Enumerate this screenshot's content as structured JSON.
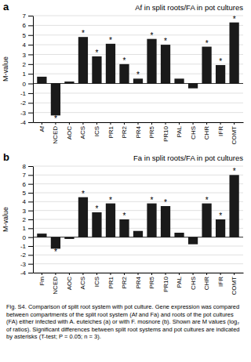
{
  "chart_data": [
    {
      "type": "bar",
      "title": "Af in split roots/FA in pot cultures",
      "panel_label": "a",
      "categories": [
        "Af",
        "NCED",
        "AOC",
        "ACS",
        "ICS",
        "PR1",
        "PR2",
        "PR4",
        "PR5",
        "PR10",
        "PAL",
        "CHS",
        "CHR",
        "IFR",
        "COMT"
      ],
      "values": [
        0.7,
        -3.3,
        0.2,
        4.8,
        2.8,
        4.1,
        2.0,
        0.5,
        4.6,
        4.0,
        0.5,
        -0.5,
        3.8,
        1.9,
        6.3
      ],
      "asterisks": [
        null,
        "*",
        null,
        "*",
        "*",
        "*",
        "*",
        "*",
        "*",
        "*",
        null,
        null,
        "*",
        "*",
        "*"
      ],
      "color": "#1a1a1a",
      "ylabel": "M-value",
      "ylim": [
        -4,
        7
      ],
      "yticks": [
        -4,
        -3,
        -2,
        -1,
        0,
        1,
        2,
        3,
        4,
        5,
        6,
        7
      ],
      "grid": true
    },
    {
      "type": "bar",
      "title": "Fa in split roots/FA in pot cultures",
      "panel_label": "b",
      "categories": [
        "Fm",
        "NCED",
        "AOC",
        "ACS",
        "ICS",
        "PR1",
        "PR2",
        "PR4",
        "PR5",
        "PR10",
        "PAL",
        "CHS",
        "CHR",
        "IFR",
        "COMT"
      ],
      "values": [
        0.4,
        -1.3,
        -0.2,
        4.5,
        2.8,
        3.8,
        2.0,
        0.7,
        3.8,
        3.5,
        0.5,
        -0.8,
        3.8,
        2.0,
        7.0
      ],
      "asterisks": [
        null,
        "*",
        null,
        "*",
        "*",
        "*",
        "*",
        null,
        "*",
        "*",
        null,
        null,
        "*",
        "*",
        "*"
      ],
      "color": "#1a1a1a",
      "ylabel": "M-value",
      "ylim": [
        -4,
        8
      ],
      "yticks": [
        -4,
        -3,
        -2,
        -1,
        0,
        1,
        2,
        3,
        4,
        5,
        6,
        7,
        8
      ],
      "grid": true
    }
  ],
  "caption": "Fig. S4. Comparison of split root system with pot culture. Gene expression was compared between compartments of the split root system (Af and Fa) and roots of the pot cultures (FA) either infected with A. euteiches (a) or with F. mosnore (b). Shown are M values (log₂ of ratios). Significant differences between split root systems and pot cultures are indicated by asterisks (T-test; P = 0.05; n = 3)."
}
